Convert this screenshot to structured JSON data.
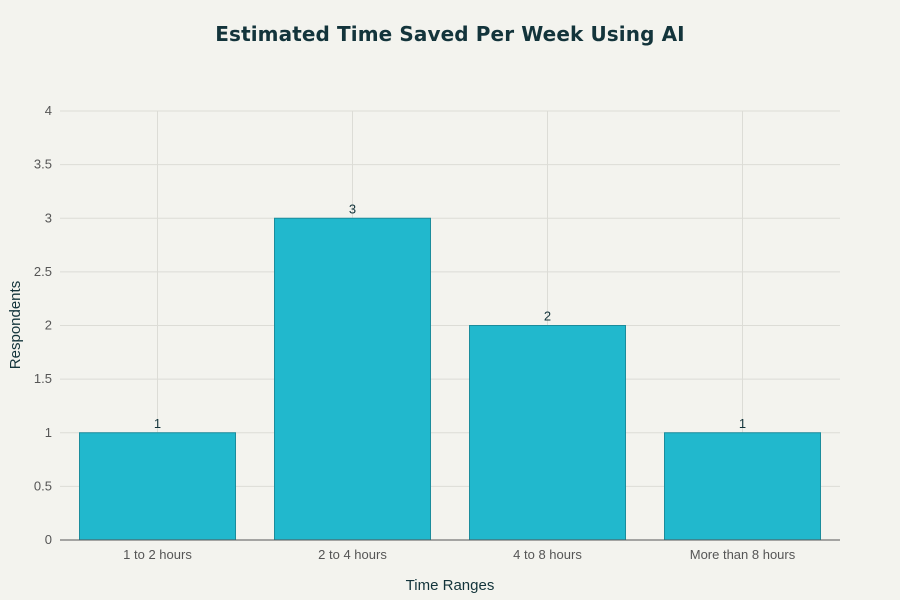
{
  "chart_data": {
    "type": "bar",
    "title": "Estimated Time Saved Per Week Using AI",
    "xlabel": "Time Ranges",
    "ylabel": "Respondents",
    "categories": [
      "1 to 2 hours",
      "2 to 4 hours",
      "4 to 8 hours",
      "More than 8 hours"
    ],
    "values": [
      1,
      3,
      2,
      1
    ],
    "data_labels": [
      "1",
      "3",
      "2",
      "1"
    ],
    "ylim": [
      0,
      4
    ],
    "yticks": [
      0,
      0.5,
      1,
      1.5,
      2,
      2.5,
      3,
      3.5,
      4
    ],
    "ytick_labels": [
      "0",
      "0.5",
      "1",
      "1.5",
      "2",
      "2.5",
      "3",
      "3.5",
      "4"
    ],
    "grid": true,
    "colors": {
      "bar": "#21b8cd",
      "bar_outline": "#1a8c9c",
      "background": "#f3f3ee",
      "grid": "#dcdcd6",
      "text": "#13343b"
    }
  }
}
